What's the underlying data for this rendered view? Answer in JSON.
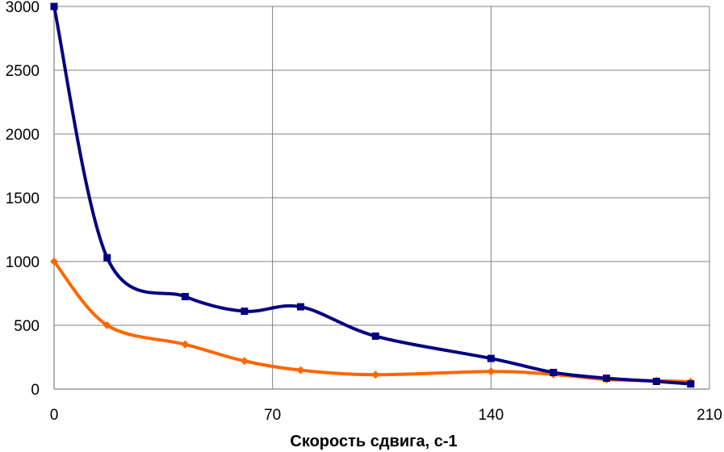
{
  "chart_data": {
    "type": "line",
    "title": "",
    "xlabel": "Скорость сдвига, с-1",
    "ylabel": "",
    "xlim": [
      0,
      210
    ],
    "ylim": [
      0,
      3000
    ],
    "x_ticks": [
      0,
      70,
      140,
      210
    ],
    "x_tick_labels": [
      "0",
      "70",
      "140",
      "210"
    ],
    "y_ticks": [
      0,
      500,
      1000,
      1500,
      2000,
      2500,
      3000
    ],
    "y_tick_labels": [
      "0",
      "500",
      "1000",
      "1500",
      "2000",
      "2500",
      "3000"
    ],
    "grid": true,
    "legend": "none",
    "series": [
      {
        "color": "#000080",
        "marker": "square",
        "points": [
          {
            "x": 0,
            "y": 3000
          },
          {
            "x": 17,
            "y": 1030
          },
          {
            "x": 42,
            "y": 725
          },
          {
            "x": 61,
            "y": 610
          },
          {
            "x": 79,
            "y": 645
          },
          {
            "x": 103,
            "y": 415
          },
          {
            "x": 140,
            "y": 240
          },
          {
            "x": 160,
            "y": 130
          },
          {
            "x": 177,
            "y": 85
          },
          {
            "x": 193,
            "y": 60
          },
          {
            "x": 204,
            "y": 40
          }
        ]
      },
      {
        "color": "#ff6600",
        "marker": "diamond",
        "points": [
          {
            "x": 0,
            "y": 1000
          },
          {
            "x": 17,
            "y": 500
          },
          {
            "x": 42,
            "y": 350
          },
          {
            "x": 61,
            "y": 220
          },
          {
            "x": 79,
            "y": 148
          },
          {
            "x": 103,
            "y": 112
          },
          {
            "x": 140,
            "y": 138
          },
          {
            "x": 160,
            "y": 115
          },
          {
            "x": 177,
            "y": 75
          },
          {
            "x": 193,
            "y": 65
          },
          {
            "x": 204,
            "y": 58
          }
        ]
      }
    ]
  }
}
